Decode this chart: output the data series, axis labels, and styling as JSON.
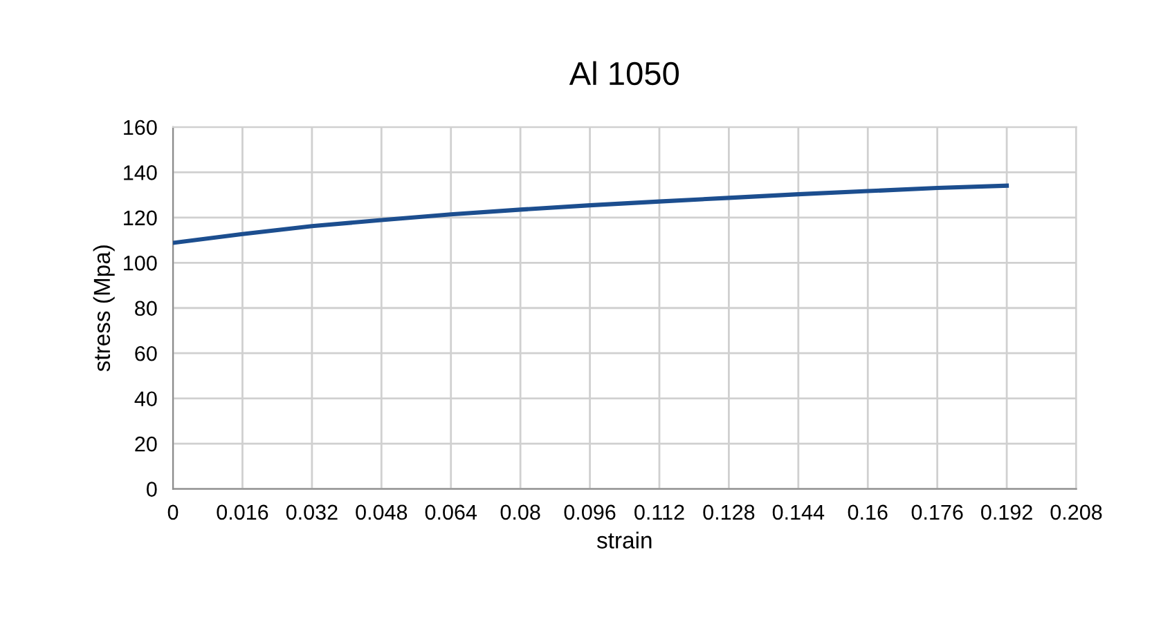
{
  "chart_data": {
    "type": "line",
    "title": "Al 1050",
    "xlabel": "strain",
    "ylabel": "stress (Mpa)",
    "x": [
      0,
      0.016,
      0.032,
      0.048,
      0.064,
      0.08,
      0.096,
      0.112,
      0.128,
      0.144,
      0.16,
      0.176,
      0.192
    ],
    "series": [
      {
        "color": "#1c4e8f",
        "values": [
          108.8,
          112.7,
          116.2,
          118.9,
          121.4,
          123.5,
          125.4,
          127.1,
          128.7,
          130.3,
          131.7,
          133.1,
          134.1
        ]
      }
    ],
    "xlim": [
      0,
      0.208
    ],
    "xticks": [
      0,
      0.016,
      0.032,
      0.048,
      0.064,
      0.08,
      0.096,
      0.112,
      0.128,
      0.144,
      0.16,
      0.176,
      0.192,
      0.208
    ],
    "ylim": [
      0,
      160
    ],
    "yticks": [
      0,
      20,
      40,
      60,
      80,
      100,
      120,
      140,
      160
    ],
    "grid": true,
    "marker": "none",
    "line_style": "solid"
  }
}
